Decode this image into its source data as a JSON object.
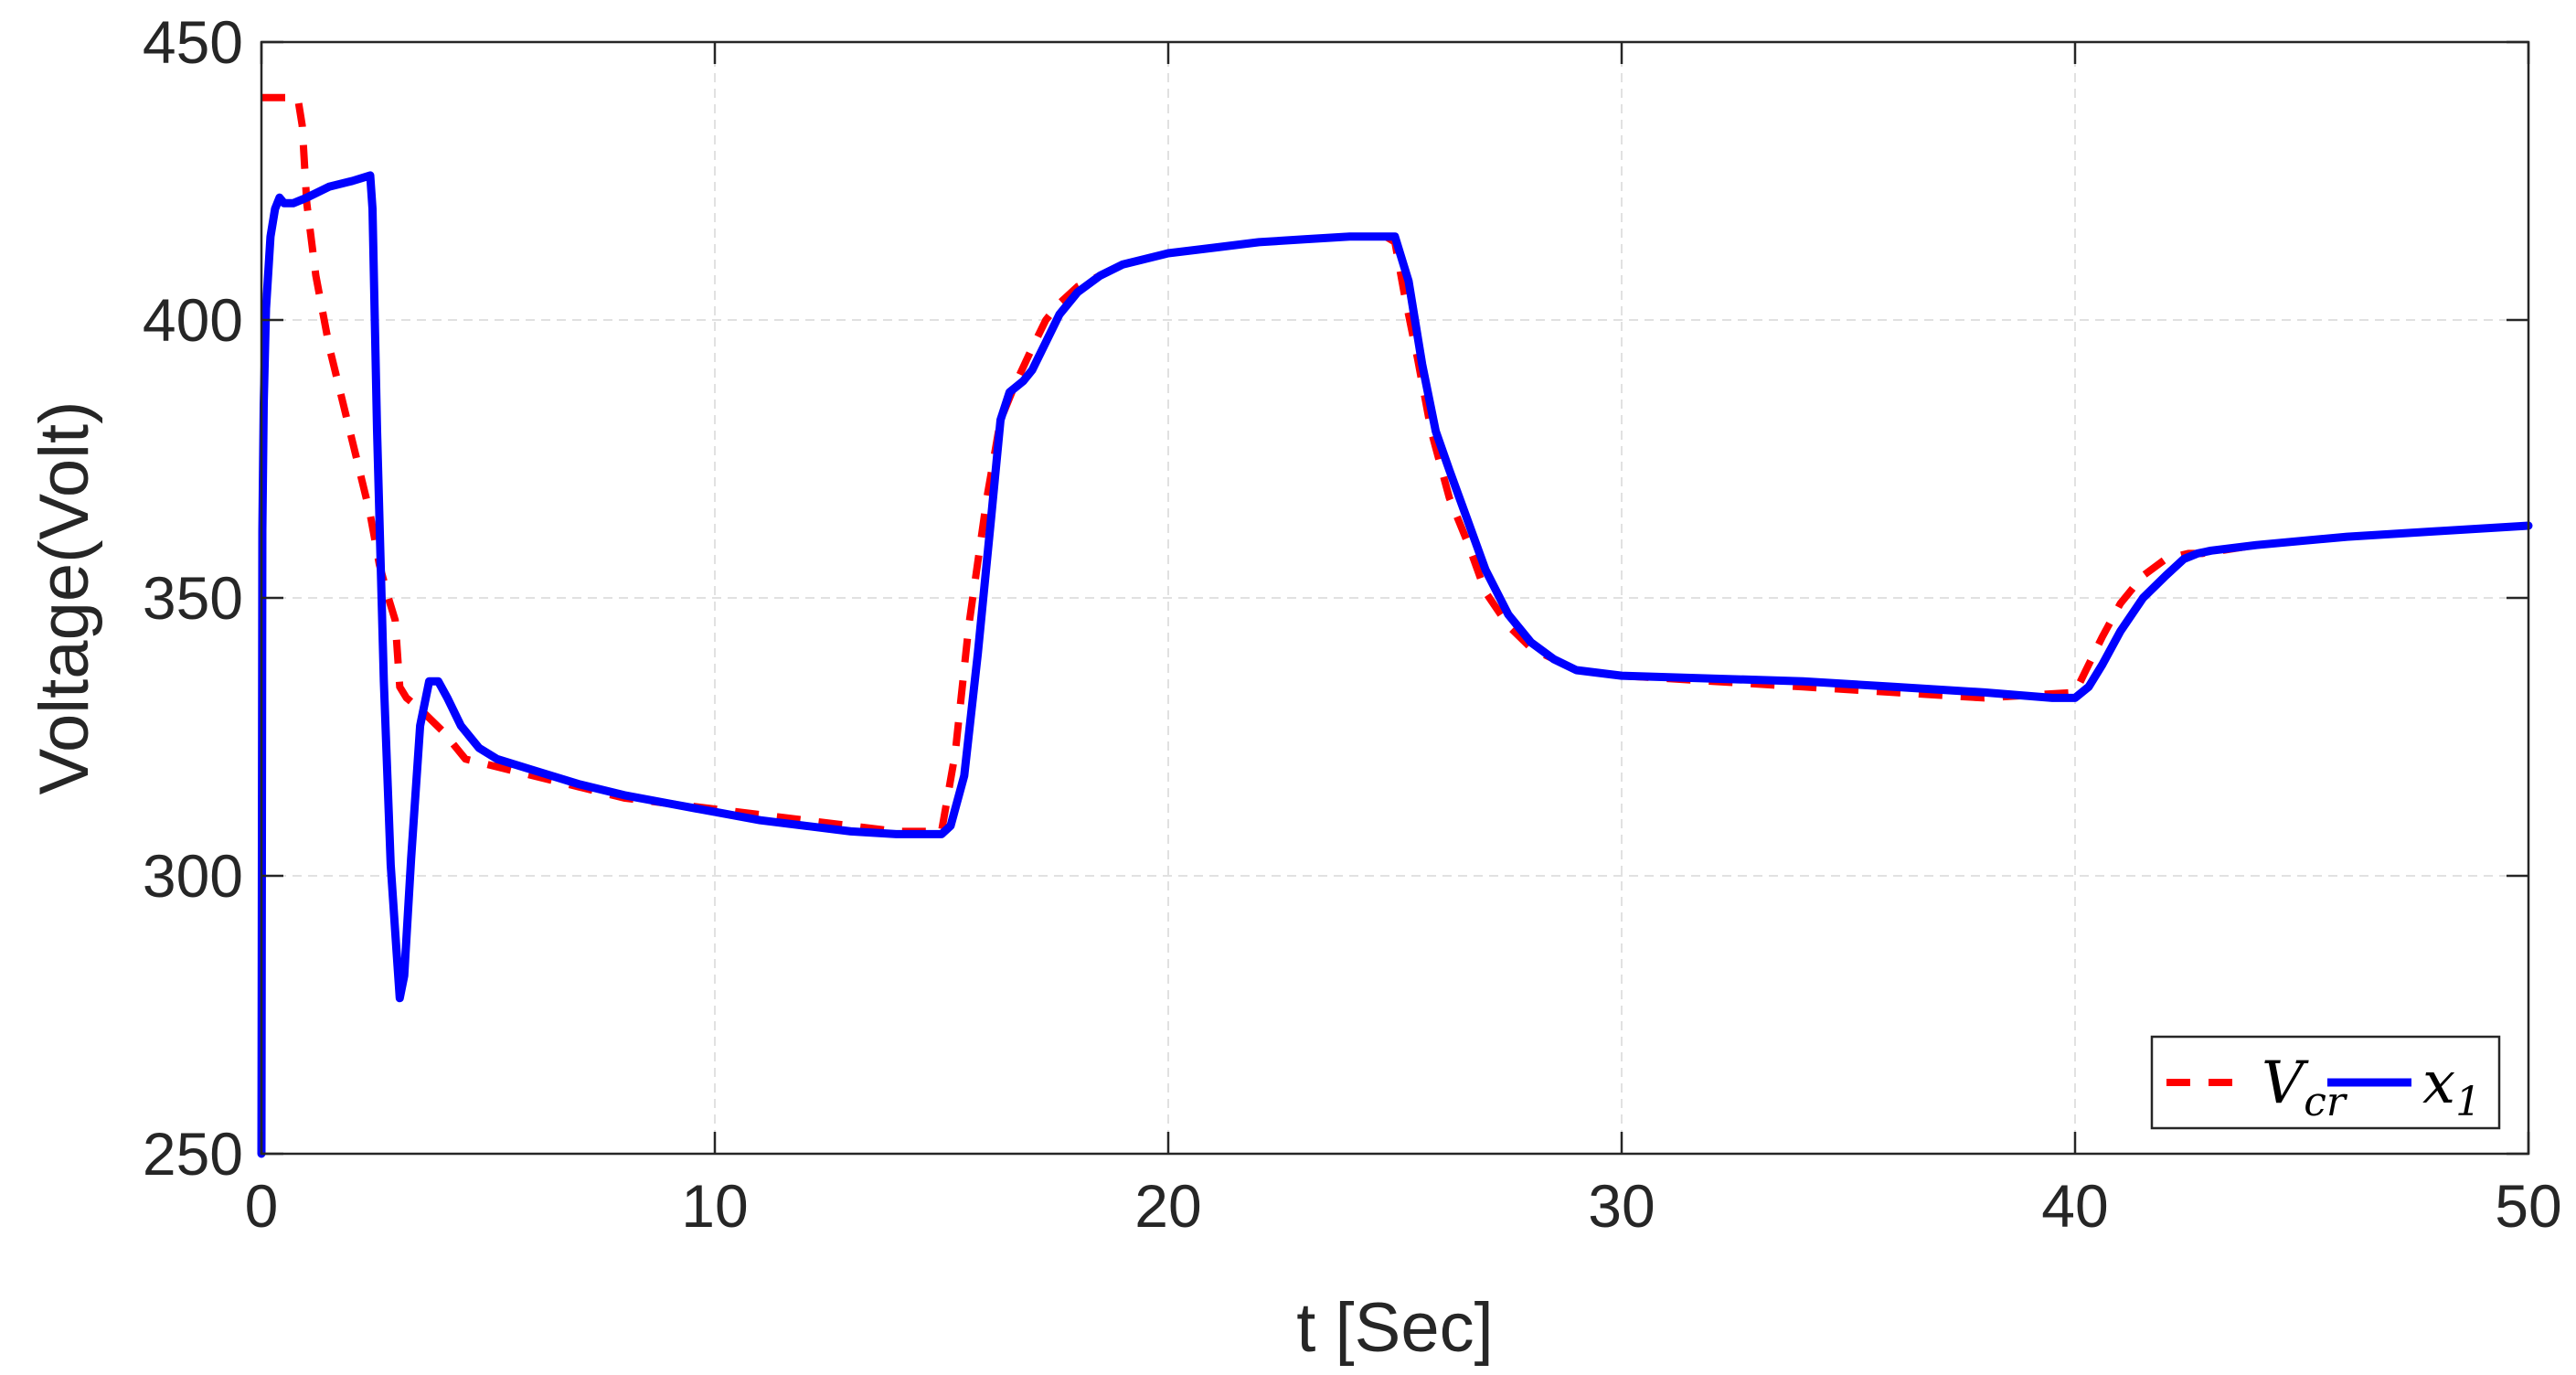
{
  "chart_data": {
    "type": "line",
    "title": "",
    "xlabel": "t [Sec]",
    "ylabel": "Voltage(Volt)",
    "xlim": [
      0,
      50
    ],
    "ylim": [
      250,
      450
    ],
    "xticks": [
      0,
      10,
      20,
      30,
      40,
      50
    ],
    "yticks": [
      250,
      300,
      350,
      400,
      450
    ],
    "grid": true,
    "legend_position": "bottom-right",
    "series": [
      {
        "name": "V_cr",
        "legend_main": "V",
        "legend_sub": "cr",
        "color": "#ff0000",
        "style": "dashed",
        "x": [
          0,
          0.8,
          0.9,
          1.0,
          1.2,
          1.5,
          1.8,
          2.1,
          2.4,
          2.6,
          2.8,
          2.95,
          3.05,
          3.2,
          3.5,
          4.0,
          4.5,
          5.0,
          6,
          7,
          8,
          9,
          10,
          11,
          12,
          13,
          14,
          15.0,
          15.3,
          15.6,
          16.0,
          16.3,
          16.6,
          17.0,
          17.3,
          17.6,
          18,
          19,
          20,
          21,
          22,
          23,
          24,
          24.8,
          25.0,
          25.2,
          25.5,
          25.8,
          26.2,
          26.6,
          27.0,
          27.5,
          28,
          28.5,
          29,
          30,
          32,
          34,
          36,
          38,
          40.0,
          40.3,
          40.6,
          41.0,
          41.5,
          42.0,
          42.5,
          42.8,
          44,
          46,
          48,
          50
        ],
        "y": [
          440,
          440,
          435,
          421,
          408,
          395,
          385,
          375,
          365,
          356,
          350,
          346,
          334,
          332,
          330,
          326,
          321,
          320,
          318,
          316,
          314,
          313,
          312,
          311,
          310,
          309,
          308,
          308,
          322,
          345,
          368,
          382,
          388,
          395,
          400,
          403,
          406,
          410,
          412,
          413,
          414,
          414.5,
          415,
          415,
          414,
          405,
          393,
          380,
          368,
          360,
          351,
          345,
          341,
          339,
          337,
          336,
          335,
          334,
          333,
          332,
          333,
          338,
          343,
          349,
          354,
          357,
          358,
          358,
          359.5,
          361,
          362,
          363
        ]
      },
      {
        "name": "x_1",
        "legend_main": "x",
        "legend_sub": "1",
        "color": "#0000ff",
        "style": "solid",
        "x": [
          0,
          0.02,
          0.05,
          0.1,
          0.2,
          0.3,
          0.4,
          0.5,
          0.7,
          1.0,
          1.5,
          2.0,
          2.4,
          2.45,
          2.55,
          2.7,
          2.85,
          2.95,
          3.05,
          3.15,
          3.3,
          3.5,
          3.7,
          3.9,
          4.1,
          4.4,
          4.8,
          5.2,
          6,
          7,
          8,
          9,
          10,
          11,
          12,
          13,
          14,
          15.0,
          15.2,
          15.5,
          15.8,
          16.1,
          16.3,
          16.5,
          16.8,
          17.0,
          17.3,
          17.6,
          18,
          18.5,
          19,
          20,
          21,
          22,
          23,
          24,
          24.8,
          25.0,
          25.3,
          25.6,
          25.9,
          26.2,
          26.6,
          27.0,
          27.5,
          28.0,
          28.5,
          29,
          30,
          32,
          34,
          36,
          38,
          39.5,
          40.0,
          40.3,
          40.6,
          41.0,
          41.5,
          42.0,
          42.4,
          42.7,
          43,
          44,
          46,
          48,
          50
        ],
        "y": [
          250,
          362,
          385,
          402,
          415,
          420,
          422,
          421,
          421,
          422,
          424,
          425,
          426,
          420,
          380,
          335,
          302,
          290,
          278,
          282,
          303,
          327,
          335,
          335,
          332,
          327,
          323,
          321,
          319,
          316.5,
          314.5,
          313,
          311.5,
          310,
          309,
          308,
          307.5,
          307.5,
          309,
          318,
          340,
          365,
          382,
          387,
          389,
          391,
          396,
          401,
          405,
          408,
          410,
          412,
          413,
          414,
          414.5,
          415,
          415,
          415,
          407,
          392,
          380,
          373,
          364,
          355,
          347,
          342,
          339,
          337,
          336,
          335.5,
          335,
          334,
          333,
          332,
          332,
          334,
          338,
          344,
          350,
          354,
          357,
          358,
          358.5,
          359.5,
          361,
          362,
          363
        ]
      }
    ]
  }
}
